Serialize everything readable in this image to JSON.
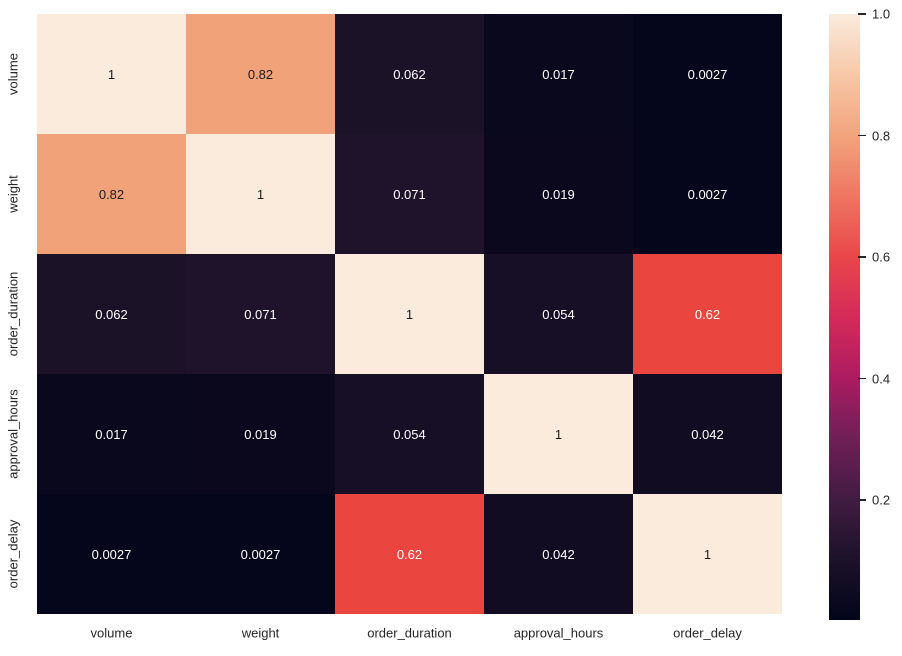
{
  "chart_data": {
    "type": "heatmap",
    "title": "",
    "colormap": "rocket",
    "vmin": 0.0027,
    "vmax": 1.0,
    "categories": [
      "volume",
      "weight",
      "order_duration",
      "approval_hours",
      "order_delay"
    ],
    "matrix": [
      [
        1,
        0.82,
        0.062,
        0.017,
        0.0027
      ],
      [
        0.82,
        1,
        0.071,
        0.019,
        0.0027
      ],
      [
        0.062,
        0.071,
        1,
        0.054,
        0.62
      ],
      [
        0.017,
        0.019,
        0.054,
        1,
        0.042
      ],
      [
        0.0027,
        0.0027,
        0.62,
        0.042,
        1
      ]
    ],
    "cell_labels": [
      [
        "1",
        "0.82",
        "0.062",
        "0.017",
        "0.0027"
      ],
      [
        "0.82",
        "1",
        "0.071",
        "0.019",
        "0.0027"
      ],
      [
        "0.062",
        "0.071",
        "1",
        "0.054",
        "0.62"
      ],
      [
        "0.017",
        "0.019",
        "0.054",
        "1",
        "0.042"
      ],
      [
        "0.0027",
        "0.0027",
        "0.62",
        "0.042",
        "1"
      ]
    ],
    "cell_colors": [
      [
        "#faebdd",
        "#f2a279",
        "#1c1228",
        "#0a081d",
        "#05061b"
      ],
      [
        "#f2a279",
        "#faebdd",
        "#1e132a",
        "#0b081e",
        "#05061b"
      ],
      [
        "#1c1228",
        "#1e132a",
        "#faebdd",
        "#170f26",
        "#ea453f"
      ],
      [
        "#0a081d",
        "#0b081e",
        "#170f26",
        "#faebdd",
        "#110c22"
      ],
      [
        "#05061b",
        "#05061b",
        "#ea453f",
        "#110c22",
        "#faebdd"
      ]
    ],
    "annot_dark_text_color": "#1a1a1a",
    "annot_light_text_color": "#ffffff",
    "dark_text_threshold": 0.7,
    "colorbar": {
      "tick_labels": [
        "1.0",
        "0.8",
        "0.6",
        "0.4",
        "0.2"
      ],
      "tick_values": [
        1.0,
        0.8,
        0.6,
        0.4,
        0.2
      ],
      "gradient_stops": [
        {
          "pos": 0,
          "color": "#faebdd"
        },
        {
          "pos": 10,
          "color": "#f7c8a8"
        },
        {
          "pos": 20,
          "color": "#f2a47d"
        },
        {
          "pos": 30,
          "color": "#ee7661"
        },
        {
          "pos": 40,
          "color": "#e9474a"
        },
        {
          "pos": 50,
          "color": "#d42a59"
        },
        {
          "pos": 60,
          "color": "#ac1c61"
        },
        {
          "pos": 70,
          "color": "#701f57"
        },
        {
          "pos": 80,
          "color": "#411c42"
        },
        {
          "pos": 90,
          "color": "#1c1229"
        },
        {
          "pos": 100,
          "color": "#03051a"
        }
      ]
    }
  }
}
